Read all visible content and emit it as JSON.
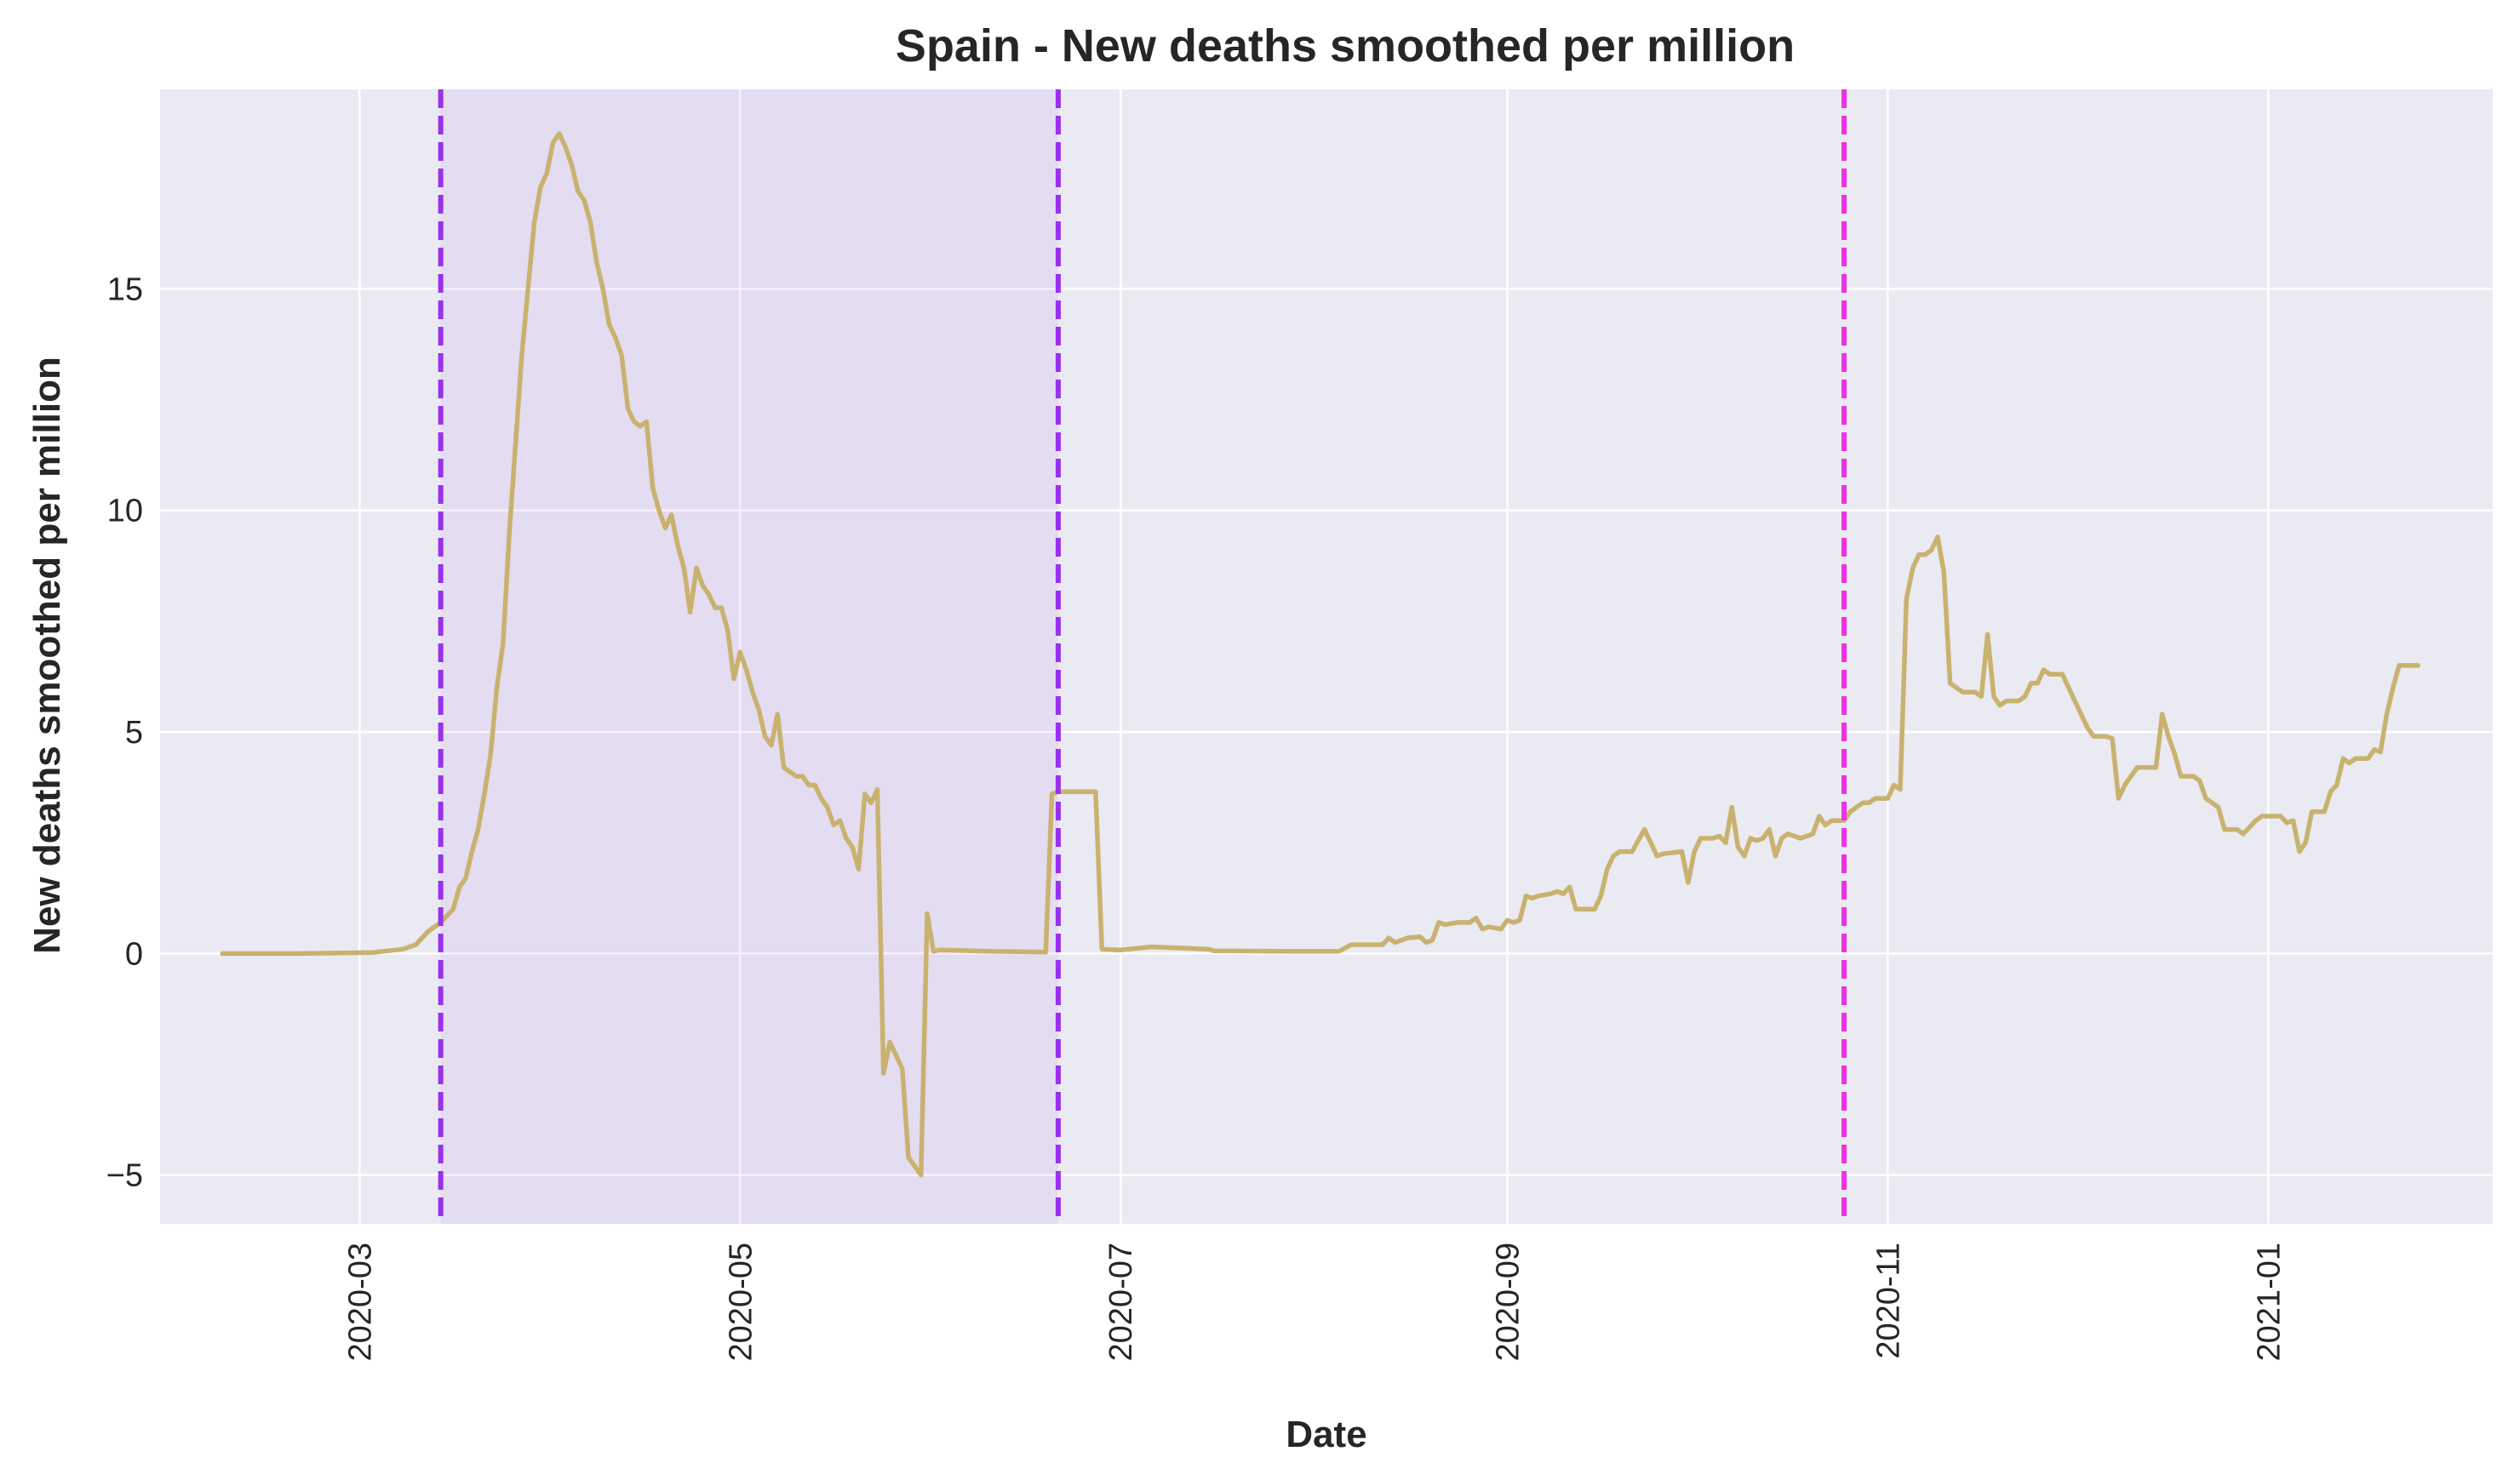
{
  "chart_data": {
    "type": "line",
    "title": "Spain - New deaths smoothed per million",
    "xlabel": "Date",
    "ylabel": "New deaths smoothed per million",
    "xlim": [
      "2020-01-29",
      "2021-02-06"
    ],
    "ylim": [
      -6.1,
      19.5
    ],
    "x_ticks": [
      "2020-03",
      "2020-05",
      "2020-07",
      "2020-09",
      "2020-11",
      "2021-01"
    ],
    "y_ticks": [
      -5,
      0,
      5,
      10,
      15
    ],
    "grid": true,
    "background_color": "#eaeaf2",
    "series": [
      {
        "color": "#c9b26f",
        "points": [
          [
            "2020-02-08",
            0.0
          ],
          [
            "2020-02-20",
            0.0
          ],
          [
            "2020-03-03",
            0.02
          ],
          [
            "2020-03-08",
            0.1
          ],
          [
            "2020-03-10",
            0.2
          ],
          [
            "2020-03-12",
            0.5
          ],
          [
            "2020-03-14",
            0.7
          ],
          [
            "2020-03-16",
            1.0
          ],
          [
            "2020-03-17",
            1.5
          ],
          [
            "2020-03-18",
            1.7
          ],
          [
            "2020-03-19",
            2.3
          ],
          [
            "2020-03-20",
            2.8
          ],
          [
            "2020-03-21",
            3.6
          ],
          [
            "2020-03-22",
            4.5
          ],
          [
            "2020-03-23",
            6.0
          ],
          [
            "2020-03-24",
            7.0
          ],
          [
            "2020-03-25",
            9.5
          ],
          [
            "2020-03-26",
            11.5
          ],
          [
            "2020-03-27",
            13.5
          ],
          [
            "2020-03-28",
            15.0
          ],
          [
            "2020-03-29",
            16.5
          ],
          [
            "2020-03-30",
            17.3
          ],
          [
            "2020-03-31",
            17.6
          ],
          [
            "2020-04-01",
            18.3
          ],
          [
            "2020-04-02",
            18.5
          ],
          [
            "2020-04-03",
            18.2
          ],
          [
            "2020-04-04",
            17.8
          ],
          [
            "2020-04-05",
            17.2
          ],
          [
            "2020-04-06",
            17.0
          ],
          [
            "2020-04-07",
            16.5
          ],
          [
            "2020-04-08",
            15.6
          ],
          [
            "2020-04-09",
            15.0
          ],
          [
            "2020-04-10",
            14.2
          ],
          [
            "2020-04-11",
            13.9
          ],
          [
            "2020-04-12",
            13.5
          ],
          [
            "2020-04-13",
            12.3
          ],
          [
            "2020-04-14",
            12.0
          ],
          [
            "2020-04-15",
            11.9
          ],
          [
            "2020-04-16",
            12.0
          ],
          [
            "2020-04-17",
            10.5
          ],
          [
            "2020-04-18",
            10.0
          ],
          [
            "2020-04-19",
            9.6
          ],
          [
            "2020-04-20",
            9.9
          ],
          [
            "2020-04-21",
            9.2
          ],
          [
            "2020-04-22",
            8.7
          ],
          [
            "2020-04-23",
            7.7
          ],
          [
            "2020-04-24",
            8.7
          ],
          [
            "2020-04-25",
            8.3
          ],
          [
            "2020-04-26",
            8.1
          ],
          [
            "2020-04-27",
            7.8
          ],
          [
            "2020-04-28",
            7.8
          ],
          [
            "2020-04-29",
            7.3
          ],
          [
            "2020-04-30",
            6.2
          ],
          [
            "2020-05-01",
            6.8
          ],
          [
            "2020-05-02",
            6.4
          ],
          [
            "2020-05-03",
            5.9
          ],
          [
            "2020-05-04",
            5.5
          ],
          [
            "2020-05-05",
            4.9
          ],
          [
            "2020-05-06",
            4.7
          ],
          [
            "2020-05-07",
            5.4
          ],
          [
            "2020-05-08",
            4.2
          ],
          [
            "2020-05-09",
            4.1
          ],
          [
            "2020-05-10",
            4.0
          ],
          [
            "2020-05-11",
            4.0
          ],
          [
            "2020-05-12",
            3.8
          ],
          [
            "2020-05-13",
            3.8
          ],
          [
            "2020-05-14",
            3.5
          ],
          [
            "2020-05-15",
            3.3
          ],
          [
            "2020-05-16",
            2.9
          ],
          [
            "2020-05-17",
            3.0
          ],
          [
            "2020-05-18",
            2.6
          ],
          [
            "2020-05-19",
            2.4
          ],
          [
            "2020-05-20",
            1.9
          ],
          [
            "2020-05-21",
            3.6
          ],
          [
            "2020-05-22",
            3.4
          ],
          [
            "2020-05-23",
            3.7
          ],
          [
            "2020-05-24",
            -2.7
          ],
          [
            "2020-05-25",
            -2.0
          ],
          [
            "2020-05-26",
            -2.3
          ],
          [
            "2020-05-27",
            -2.6
          ],
          [
            "2020-05-28",
            -4.6
          ],
          [
            "2020-05-29",
            -4.8
          ],
          [
            "2020-05-30",
            -5.0
          ],
          [
            "2020-05-31",
            0.9
          ],
          [
            "2020-06-01",
            0.05
          ],
          [
            "2020-06-02",
            0.08
          ],
          [
            "2020-06-10",
            0.05
          ],
          [
            "2020-06-19",
            0.03
          ],
          [
            "2020-06-20",
            3.6
          ],
          [
            "2020-06-21",
            3.65
          ],
          [
            "2020-06-27",
            3.65
          ],
          [
            "2020-06-28",
            0.1
          ],
          [
            "2020-07-01",
            0.08
          ],
          [
            "2020-07-06",
            0.15
          ],
          [
            "2020-07-15",
            0.1
          ],
          [
            "2020-07-16",
            0.06
          ],
          [
            "2020-07-28",
            0.05
          ],
          [
            "2020-08-05",
            0.05
          ],
          [
            "2020-08-07",
            0.2
          ],
          [
            "2020-08-12",
            0.2
          ],
          [
            "2020-08-13",
            0.35
          ],
          [
            "2020-08-14",
            0.25
          ],
          [
            "2020-08-16",
            0.35
          ],
          [
            "2020-08-18",
            0.38
          ],
          [
            "2020-08-19",
            0.25
          ],
          [
            "2020-08-20",
            0.3
          ],
          [
            "2020-08-21",
            0.7
          ],
          [
            "2020-08-22",
            0.65
          ],
          [
            "2020-08-24",
            0.7
          ],
          [
            "2020-08-26",
            0.7
          ],
          [
            "2020-08-27",
            0.8
          ],
          [
            "2020-08-28",
            0.55
          ],
          [
            "2020-08-29",
            0.6
          ],
          [
            "2020-08-31",
            0.55
          ],
          [
            "2020-09-01",
            0.75
          ],
          [
            "2020-09-02",
            0.7
          ],
          [
            "2020-09-03",
            0.75
          ],
          [
            "2020-09-04",
            1.3
          ],
          [
            "2020-09-05",
            1.25
          ],
          [
            "2020-09-06",
            1.3
          ],
          [
            "2020-09-08",
            1.35
          ],
          [
            "2020-09-09",
            1.4
          ],
          [
            "2020-09-10",
            1.35
          ],
          [
            "2020-09-11",
            1.5
          ],
          [
            "2020-09-12",
            1.0
          ],
          [
            "2020-09-13",
            1.0
          ],
          [
            "2020-09-14",
            1.0
          ],
          [
            "2020-09-15",
            1.0
          ],
          [
            "2020-09-16",
            1.3
          ],
          [
            "2020-09-17",
            1.9
          ],
          [
            "2020-09-18",
            2.2
          ],
          [
            "2020-09-19",
            2.3
          ],
          [
            "2020-09-21",
            2.3
          ],
          [
            "2020-09-23",
            2.8
          ],
          [
            "2020-09-24",
            2.5
          ],
          [
            "2020-09-25",
            2.2
          ],
          [
            "2020-09-26",
            2.25
          ],
          [
            "2020-09-29",
            2.3
          ],
          [
            "2020-09-30",
            1.6
          ],
          [
            "2020-10-01",
            2.3
          ],
          [
            "2020-10-02",
            2.6
          ],
          [
            "2020-10-04",
            2.6
          ],
          [
            "2020-10-05",
            2.65
          ],
          [
            "2020-10-06",
            2.5
          ],
          [
            "2020-10-07",
            3.3
          ],
          [
            "2020-10-08",
            2.4
          ],
          [
            "2020-10-09",
            2.2
          ],
          [
            "2020-10-10",
            2.6
          ],
          [
            "2020-10-11",
            2.55
          ],
          [
            "2020-10-12",
            2.6
          ],
          [
            "2020-10-13",
            2.8
          ],
          [
            "2020-10-14",
            2.2
          ],
          [
            "2020-10-15",
            2.6
          ],
          [
            "2020-10-16",
            2.7
          ],
          [
            "2020-10-18",
            2.6
          ],
          [
            "2020-10-20",
            2.7
          ],
          [
            "2020-10-21",
            3.1
          ],
          [
            "2020-10-22",
            2.9
          ],
          [
            "2020-10-23",
            3.0
          ],
          [
            "2020-10-25",
            3.0
          ],
          [
            "2020-10-26",
            3.2
          ],
          [
            "2020-10-27",
            3.3
          ],
          [
            "2020-10-28",
            3.4
          ],
          [
            "2020-10-29",
            3.4
          ],
          [
            "2020-10-30",
            3.5
          ],
          [
            "2020-11-01",
            3.5
          ],
          [
            "2020-11-02",
            3.8
          ],
          [
            "2020-11-03",
            3.7
          ],
          [
            "2020-11-04",
            8.0
          ],
          [
            "2020-11-05",
            8.7
          ],
          [
            "2020-11-06",
            9.0
          ],
          [
            "2020-11-07",
            9.0
          ],
          [
            "2020-11-08",
            9.1
          ],
          [
            "2020-11-09",
            9.4
          ],
          [
            "2020-11-10",
            8.6
          ],
          [
            "2020-11-11",
            6.1
          ],
          [
            "2020-11-12",
            6.0
          ],
          [
            "2020-11-13",
            5.9
          ],
          [
            "2020-11-15",
            5.9
          ],
          [
            "2020-11-16",
            5.8
          ],
          [
            "2020-11-17",
            7.2
          ],
          [
            "2020-11-18",
            5.8
          ],
          [
            "2020-11-19",
            5.6
          ],
          [
            "2020-11-20",
            5.7
          ],
          [
            "2020-11-22",
            5.7
          ],
          [
            "2020-11-23",
            5.8
          ],
          [
            "2020-11-24",
            6.1
          ],
          [
            "2020-11-25",
            6.1
          ],
          [
            "2020-11-26",
            6.4
          ],
          [
            "2020-11-27",
            6.3
          ],
          [
            "2020-11-29",
            6.3
          ],
          [
            "2020-11-30",
            6.0
          ],
          [
            "2020-12-01",
            5.7
          ],
          [
            "2020-12-02",
            5.4
          ],
          [
            "2020-12-03",
            5.1
          ],
          [
            "2020-12-04",
            4.9
          ],
          [
            "2020-12-06",
            4.9
          ],
          [
            "2020-12-07",
            4.85
          ],
          [
            "2020-12-08",
            3.5
          ],
          [
            "2020-12-09",
            3.8
          ],
          [
            "2020-12-10",
            4.0
          ],
          [
            "2020-12-11",
            4.2
          ],
          [
            "2020-12-13",
            4.2
          ],
          [
            "2020-12-14",
            4.2
          ],
          [
            "2020-12-15",
            5.4
          ],
          [
            "2020-12-16",
            4.9
          ],
          [
            "2020-12-17",
            4.5
          ],
          [
            "2020-12-18",
            4.0
          ],
          [
            "2020-12-20",
            4.0
          ],
          [
            "2020-12-21",
            3.9
          ],
          [
            "2020-12-22",
            3.5
          ],
          [
            "2020-12-23",
            3.4
          ],
          [
            "2020-12-24",
            3.3
          ],
          [
            "2020-12-25",
            2.8
          ],
          [
            "2020-12-27",
            2.8
          ],
          [
            "2020-12-28",
            2.7
          ],
          [
            "2020-12-29",
            2.85
          ],
          [
            "2020-12-30",
            3.0
          ],
          [
            "2020-12-31",
            3.1
          ],
          [
            "2021-01-03",
            3.1
          ],
          [
            "2021-01-04",
            2.95
          ],
          [
            "2021-01-05",
            3.0
          ],
          [
            "2021-01-06",
            2.3
          ],
          [
            "2021-01-07",
            2.5
          ],
          [
            "2021-01-08",
            3.2
          ],
          [
            "2021-01-10",
            3.2
          ],
          [
            "2021-01-11",
            3.65
          ],
          [
            "2021-01-12",
            3.8
          ],
          [
            "2021-01-13",
            4.4
          ],
          [
            "2021-01-14",
            4.3
          ],
          [
            "2021-01-15",
            4.4
          ],
          [
            "2021-01-17",
            4.4
          ],
          [
            "2021-01-18",
            4.6
          ],
          [
            "2021-01-19",
            4.55
          ],
          [
            "2021-01-20",
            5.4
          ],
          [
            "2021-01-21",
            6.0
          ],
          [
            "2021-01-22",
            6.5
          ],
          [
            "2021-01-23",
            6.5
          ],
          [
            "2021-01-25",
            6.5
          ]
        ]
      }
    ],
    "vlines": [
      {
        "x": "2020-03-14",
        "color": "#9b30ee",
        "style": "dashed"
      },
      {
        "x": "2020-06-21",
        "color": "#9b30ee",
        "style": "dashed"
      },
      {
        "x": "2020-10-25",
        "color": "#ee30e6",
        "style": "dashed"
      }
    ],
    "shaded_spans": [
      {
        "from": "2020-03-14",
        "to": "2020-06-21",
        "color": "#9b30ee",
        "opacity": 0.07
      }
    ]
  }
}
